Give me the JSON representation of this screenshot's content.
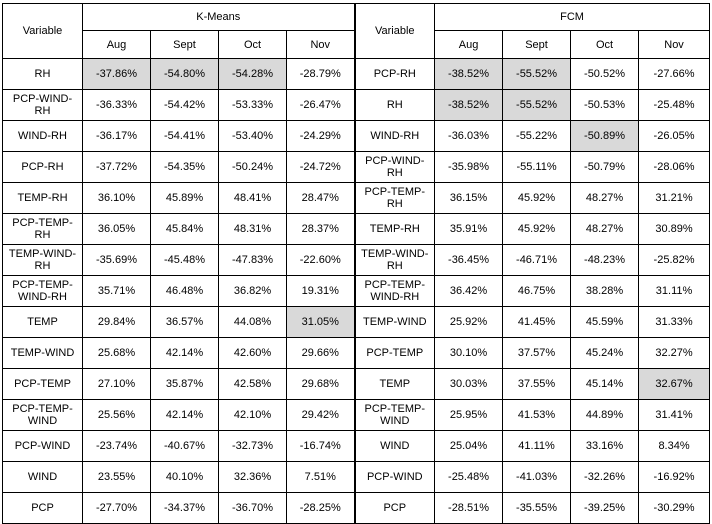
{
  "headers": {
    "variable_label": "Variable",
    "kmeans_label": "K-Means",
    "fcm_label": "FCM",
    "months": [
      "Aug",
      "Sept",
      "Oct",
      "Nov"
    ]
  },
  "rows": [
    {
      "k_var": "RH",
      "k": [
        "-37.86%",
        "-54.80%",
        "-54.28%",
        "-28.79%"
      ],
      "f_var": "PCP-RH",
      "f": [
        "-38.52%",
        "-55.52%",
        "-50.52%",
        "-27.66%"
      ]
    },
    {
      "k_var": "PCP-WIND-RH",
      "k": [
        "-36.33%",
        "-54.42%",
        "-53.33%",
        "-26.47%"
      ],
      "f_var": "RH",
      "f": [
        "-38.52%",
        "-55.52%",
        "-50.53%",
        "-25.48%"
      ]
    },
    {
      "k_var": "WIND-RH",
      "k": [
        "-36.17%",
        "-54.41%",
        "-53.40%",
        "-24.29%"
      ],
      "f_var": "WIND-RH",
      "f": [
        "-36.03%",
        "-55.22%",
        "-50.89%",
        "-26.05%"
      ]
    },
    {
      "k_var": "PCP-RH",
      "k": [
        "-37.72%",
        "-54.35%",
        "-50.24%",
        "-24.72%"
      ],
      "f_var": "PCP-WIND-RH",
      "f": [
        "-35.98%",
        "-55.11%",
        "-50.79%",
        "-28.06%"
      ]
    },
    {
      "k_var": "TEMP-RH",
      "k": [
        "36.10%",
        "45.89%",
        "48.41%",
        "28.47%"
      ],
      "f_var": "PCP-TEMP-RH",
      "f": [
        "36.15%",
        "45.92%",
        "48.27%",
        "31.21%"
      ]
    },
    {
      "k_var": "PCP-TEMP-RH",
      "k": [
        "36.05%",
        "45.84%",
        "48.31%",
        "28.37%"
      ],
      "f_var": "TEMP-RH",
      "f": [
        "35.91%",
        "45.92%",
        "48.27%",
        "30.89%"
      ]
    },
    {
      "k_var": "TEMP-WIND-RH",
      "k": [
        "-35.69%",
        "-45.48%",
        "-47.83%",
        "-22.60%"
      ],
      "f_var": "TEMP-WIND-RH",
      "f": [
        "-36.45%",
        "-46.71%",
        "-48.23%",
        "-25.82%"
      ]
    },
    {
      "k_var": "PCP-TEMP-WIND-RH",
      "k": [
        "35.71%",
        "46.48%",
        "36.82%",
        "19.31%"
      ],
      "f_var": "PCP-TEMP-WIND-RH",
      "f": [
        "36.42%",
        "46.75%",
        "38.28%",
        "31.11%"
      ]
    },
    {
      "k_var": "TEMP",
      "k": [
        "29.84%",
        "36.57%",
        "44.08%",
        "31.05%"
      ],
      "f_var": "TEMP-WIND",
      "f": [
        "25.92%",
        "41.45%",
        "45.59%",
        "31.33%"
      ]
    },
    {
      "k_var": "TEMP-WIND",
      "k": [
        "25.68%",
        "42.14%",
        "42.60%",
        "29.66%"
      ],
      "f_var": "PCP-TEMP",
      "f": [
        "30.10%",
        "37.57%",
        "45.24%",
        "32.27%"
      ]
    },
    {
      "k_var": "PCP-TEMP",
      "k": [
        "27.10%",
        "35.87%",
        "42.58%",
        "29.68%"
      ],
      "f_var": "TEMP",
      "f": [
        "30.03%",
        "37.55%",
        "45.14%",
        "32.67%"
      ]
    },
    {
      "k_var": "PCP-TEMP-WIND",
      "k": [
        "25.56%",
        "42.14%",
        "42.10%",
        "29.42%"
      ],
      "f_var": "PCP-TEMP-WIND",
      "f": [
        "25.95%",
        "41.53%",
        "44.89%",
        "31.41%"
      ]
    },
    {
      "k_var": "PCP-WIND",
      "k": [
        "-23.74%",
        "-40.67%",
        "-32.73%",
        "-16.74%"
      ],
      "f_var": "WIND",
      "f": [
        "25.04%",
        "41.11%",
        "33.16%",
        "8.34%"
      ]
    },
    {
      "k_var": "WIND",
      "k": [
        "23.55%",
        "40.10%",
        "32.36%",
        "7.51%"
      ],
      "f_var": "PCP-WIND",
      "f": [
        "-25.48%",
        "-41.03%",
        "-32.26%",
        "-16.92%"
      ]
    },
    {
      "k_var": "PCP",
      "k": [
        "-27.70%",
        "-34.37%",
        "-36.70%",
        "-28.25%"
      ],
      "f_var": "PCP",
      "f": [
        "-28.51%",
        "-35.55%",
        "-39.25%",
        "-30.29%"
      ]
    }
  ],
  "highlight_color": "#d9d9d9",
  "highlighted_cells": {
    "kmeans": [
      [
        0,
        0
      ],
      [
        0,
        1
      ],
      [
        0,
        2
      ],
      [
        8,
        3
      ]
    ],
    "fcm": [
      [
        0,
        0
      ],
      [
        0,
        1
      ],
      [
        1,
        0
      ],
      [
        1,
        1
      ],
      [
        2,
        2
      ],
      [
        10,
        3
      ]
    ]
  }
}
